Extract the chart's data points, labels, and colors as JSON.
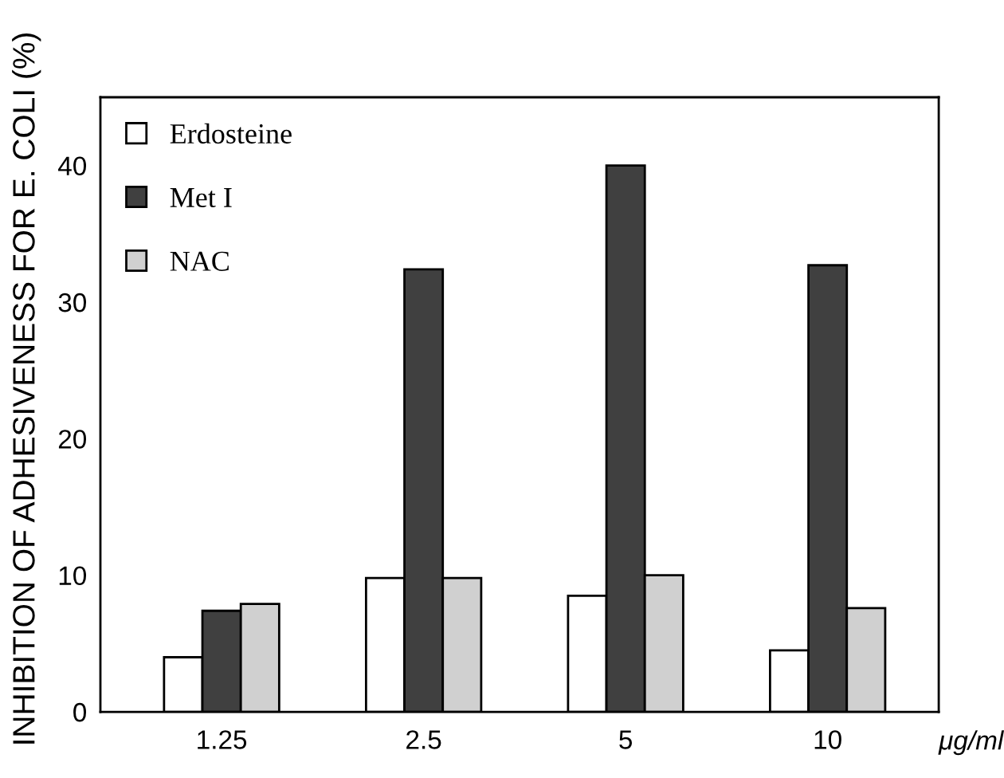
{
  "chart_data": {
    "type": "bar",
    "categories": [
      "1.25",
      "2.5",
      "5",
      "10"
    ],
    "xlabel": "μg/ml",
    "ylabel": "INHIBITION OF ADHESIVENESS FOR E. COLI (%)",
    "series": [
      {
        "name": "Erdosteine",
        "color": "#ffffff",
        "values": [
          4.0,
          9.8,
          8.5,
          4.5
        ]
      },
      {
        "name": "Met I",
        "color": "#404040",
        "values": [
          7.4,
          32.4,
          40,
          32.7
        ]
      },
      {
        "name": "NAC",
        "color": "#d0d0d0",
        "values": [
          7.9,
          9.8,
          10.0,
          7.6
        ]
      }
    ],
    "ylim": [
      0,
      45
    ],
    "yticks": [
      0,
      10,
      20,
      30,
      40
    ],
    "legend": "top left",
    "grid": false
  }
}
